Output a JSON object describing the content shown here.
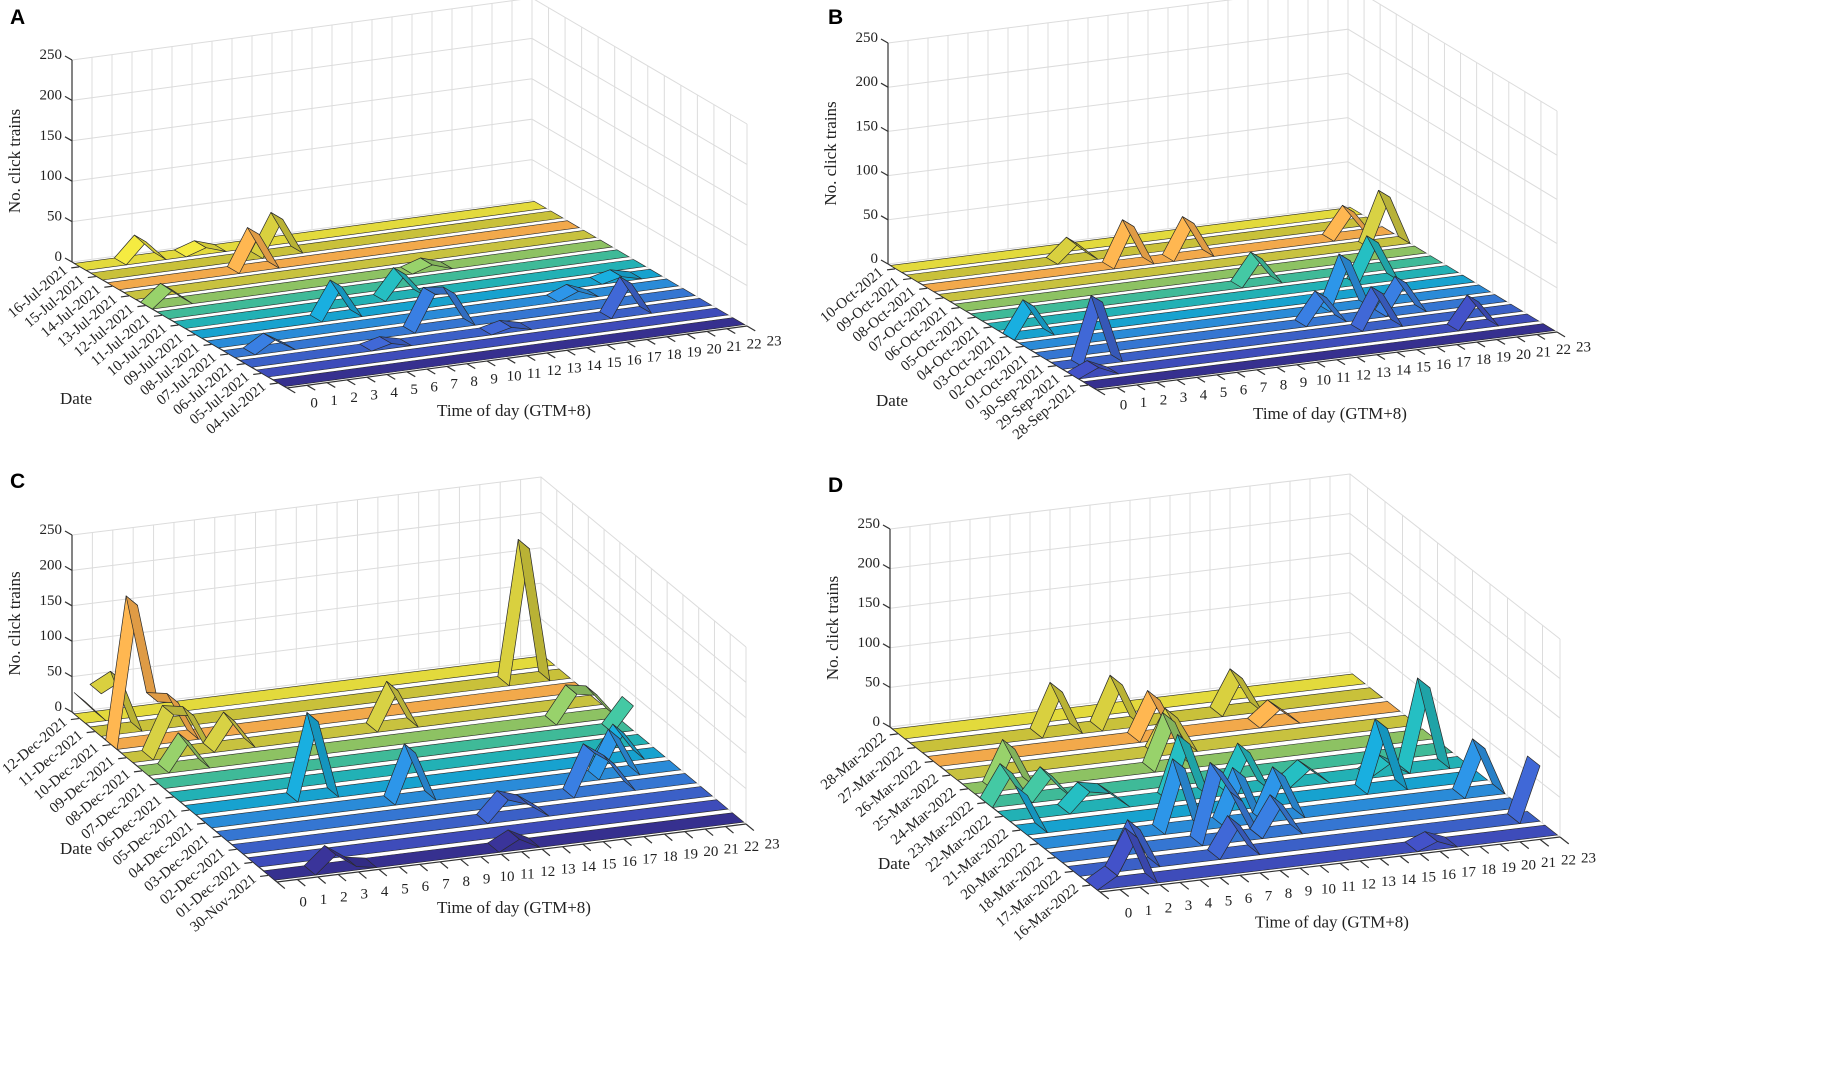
{
  "row_colors": [
    "#e3da3c",
    "#c9c13a",
    "#f2a94b",
    "#c8c23f",
    "#8dc263",
    "#3fba98",
    "#22b1b5",
    "#17a2cf",
    "#2a8bd8",
    "#3576d2",
    "#3b60c7",
    "#3e4cba",
    "#36308f"
  ],
  "chart_data": [
    {
      "type": "3d-ribbon",
      "panel_label": "A",
      "xlabel": "Time of day (GTM+8)",
      "ylabel": "Date",
      "zlabel": "No. click trains",
      "hours": [
        "0",
        "1",
        "2",
        "3",
        "4",
        "5",
        "6",
        "7",
        "8",
        "9",
        "10",
        "11",
        "12",
        "13",
        "14",
        "15",
        "16",
        "17",
        "18",
        "19",
        "20",
        "21",
        "22",
        "23"
      ],
      "zticks": [
        "0",
        "50",
        "100",
        "150",
        "200",
        "250"
      ],
      "zlim": [
        0,
        250
      ],
      "grid": true,
      "dates": [
        "16-Jul-2021",
        "15-Jul-2021",
        "14-Jul-2021",
        "13-Jul-2021",
        "12-Jul-2021",
        "11-Jul-2021",
        "10-Jul-2021",
        "09-Jul-2021",
        "08-Jul-2021",
        "07-Jul-2021",
        "06-Jul-2021",
        "05-Jul-2021",
        "04-Jul-2021"
      ],
      "peaks": [
        [
          "16-Jul-2021",
          3,
          25
        ],
        [
          "16-Jul-2021",
          6,
          8
        ],
        [
          "15-Jul-2021",
          9,
          45
        ],
        [
          "14-Jul-2021",
          7,
          45
        ],
        [
          "12-Jul-2021",
          1,
          20
        ],
        [
          "12-Jul-2021",
          14,
          8
        ],
        [
          "10-Jul-2021",
          11,
          30
        ],
        [
          "09-Jul-2021",
          7,
          40
        ],
        [
          "08-Jul-2021",
          18,
          10
        ],
        [
          "09-Jul-2021",
          21,
          6
        ],
        [
          "07-Jul-2021",
          10,
          45
        ],
        [
          "07-Jul-2021",
          11,
          42
        ],
        [
          "07-Jul-2021",
          2,
          15
        ],
        [
          "06-Jul-2021",
          19,
          40
        ],
        [
          "06-Jul-2021",
          7,
          6
        ],
        [
          "06-Jul-2021",
          13,
          6
        ]
      ]
    },
    {
      "type": "3d-ribbon",
      "panel_label": "B",
      "xlabel": "Time of day (GTM+8)",
      "ylabel": "Date",
      "zlabel": "No. click trains",
      "hours": [
        "0",
        "1",
        "2",
        "3",
        "4",
        "5",
        "6",
        "7",
        "8",
        "9",
        "10",
        "11",
        "12",
        "13",
        "14",
        "15",
        "16",
        "17",
        "18",
        "19",
        "20",
        "21",
        "22",
        "23"
      ],
      "zticks": [
        "0",
        "50",
        "100",
        "150",
        "200",
        "250"
      ],
      "zlim": [
        0,
        250
      ],
      "grid": true,
      "dates": [
        "10-Oct-2021",
        "09-Oct-2021",
        "08-Oct-2021",
        "07-Oct-2021",
        "06-Oct-2021",
        "05-Oct-2021",
        "04-Oct-2021",
        "03-Oct-2021",
        "02-Oct-2021",
        "01-Oct-2021",
        "30-Sep-2021",
        "29-Sep-2021",
        "28-Sep-2021"
      ],
      "peaks": [
        [
          "09-Oct-2021",
          8,
          20
        ],
        [
          "08-Oct-2021",
          10,
          45
        ],
        [
          "08-Oct-2021",
          13,
          40
        ],
        [
          "08-Oct-2021",
          21,
          30
        ],
        [
          "07-Oct-2021",
          22,
          55
        ],
        [
          "05-Oct-2021",
          14,
          30
        ],
        [
          "04-Oct-2021",
          19,
          45
        ],
        [
          "02-Oct-2021",
          16,
          55
        ],
        [
          "01-Oct-2021",
          14,
          30
        ],
        [
          "30-Sep-2021",
          16,
          40
        ],
        [
          "01-Oct-2021",
          18,
          35
        ],
        [
          "29-Sep-2021",
          20,
          30
        ],
        [
          "03-Oct-2021",
          1,
          35
        ],
        [
          "30-Sep-2021",
          2,
          70
        ],
        [
          "29-Sep-2021",
          1,
          10
        ]
      ]
    },
    {
      "type": "3d-ribbon",
      "panel_label": "C",
      "xlabel": "Time of day (GTM+8)",
      "ylabel": "Date",
      "zlabel": "No. click trains",
      "hours": [
        "0",
        "1",
        "2",
        "3",
        "4",
        "5",
        "6",
        "7",
        "8",
        "9",
        "10",
        "11",
        "12",
        "13",
        "14",
        "15",
        "16",
        "17",
        "18",
        "19",
        "20",
        "21",
        "22",
        "23"
      ],
      "zticks": [
        "0",
        "50",
        "100",
        "150",
        "200",
        "250"
      ],
      "zlim": [
        0,
        250
      ],
      "grid": true,
      "dates": [
        "12-Dec-2021",
        "11-Dec-2021",
        "10-Dec-2021",
        "09-Dec-2021",
        "08-Dec-2021",
        "07-Dec-2021",
        "06-Dec-2021",
        "05-Dec-2021",
        "04-Dec-2021",
        "03-Dec-2021",
        "02-Dec-2021",
        "01-Dec-2021",
        "30-Nov-2021"
      ],
      "peaks": [
        [
          "12-Dec-2021",
          0,
          30
        ],
        [
          "11-Dec-2021",
          0,
          60
        ],
        [
          "11-Dec-2021",
          1,
          75
        ],
        [
          "10-Dec-2021",
          1,
          200
        ],
        [
          "10-Dec-2021",
          2,
          60
        ],
        [
          "10-Dec-2021",
          3,
          55
        ],
        [
          "09-Dec-2021",
          2,
          60
        ],
        [
          "09-Dec-2021",
          3,
          55
        ],
        [
          "08-Dec-2021",
          2,
          40
        ],
        [
          "09-Dec-2021",
          5,
          40
        ],
        [
          "05-Dec-2021",
          6,
          110
        ],
        [
          "09-Dec-2021",
          13,
          55
        ],
        [
          "11-Dec-2021",
          21,
          190
        ],
        [
          "08-Dec-2021",
          21,
          40
        ],
        [
          "08-Dec-2021",
          22,
          35
        ],
        [
          "07-Dec-2021",
          23,
          35
        ],
        [
          "04-Dec-2021",
          10,
          70
        ],
        [
          "03-Dec-2021",
          18,
          60
        ],
        [
          "03-Dec-2021",
          19,
          40
        ],
        [
          "04-Dec-2021",
          20,
          55
        ],
        [
          "05-Dec-2021",
          21,
          40
        ],
        [
          "02-Dec-2021",
          13,
          30
        ],
        [
          "02-Dec-2021",
          14,
          20
        ],
        [
          "30-Nov-2021",
          3,
          25
        ],
        [
          "30-Nov-2021",
          4,
          5
        ],
        [
          "30-Nov-2021",
          12,
          15
        ]
      ]
    },
    {
      "type": "3d-ribbon",
      "panel_label": "D",
      "xlabel": "Time of day (GTM+8)",
      "ylabel": "Date",
      "zlabel": "No. click trains",
      "hours": [
        "0",
        "1",
        "2",
        "3",
        "4",
        "5",
        "6",
        "7",
        "8",
        "9",
        "10",
        "11",
        "12",
        "13",
        "14",
        "15",
        "16",
        "17",
        "18",
        "19",
        "20",
        "21",
        "22",
        "23"
      ],
      "zticks": [
        "0",
        "50",
        "100",
        "150",
        "200",
        "250"
      ],
      "zlim": [
        0,
        250
      ],
      "grid": true,
      "dates": [
        "28-Mar-2022",
        "27-Mar-2022",
        "26-Mar-2022",
        "25-Mar-2022",
        "24-Mar-2022",
        "23-Mar-2022",
        "22-Mar-2022",
        "21-Mar-2022",
        "20-Mar-2022",
        "18-Mar-2022",
        "17-Mar-2022",
        "16-Mar-2022"
      ],
      "peaks": [
        [
          "27-Mar-2022",
          7,
          55
        ],
        [
          "27-Mar-2022",
          10,
          55
        ],
        [
          "26-Mar-2022",
          11,
          50
        ],
        [
          "24-Mar-2022",
          10,
          60
        ],
        [
          "25-Mar-2022",
          11,
          45
        ],
        [
          "27-Mar-2022",
          16,
          45
        ],
        [
          "26-Mar-2022",
          17,
          20
        ],
        [
          "22-Mar-2022",
          12,
          50
        ],
        [
          "22-Mar-2022",
          15,
          20
        ],
        [
          "22-Mar-2022",
          21,
          105
        ],
        [
          "21-Mar-2022",
          18,
          80
        ],
        [
          "20-Mar-2022",
          22,
          60
        ],
        [
          "22-Mar-2022",
          19,
          15
        ],
        [
          "17-Mar-2022",
          23,
          70
        ],
        [
          "16-Mar-2022",
          17,
          10
        ],
        [
          "23-Mar-2022",
          1,
          40
        ],
        [
          "24-Mar-2022",
          2,
          50
        ],
        [
          "23-Mar-2022",
          3,
          30
        ],
        [
          "22-Mar-2022",
          4,
          25
        ],
        [
          "22-Mar-2022",
          5,
          20
        ],
        [
          "21-Mar-2022",
          0,
          50
        ],
        [
          "16-Mar-2022",
          1,
          15
        ],
        [
          "18-Mar-2022",
          8,
          90
        ],
        [
          "20-Mar-2022",
          7,
          80
        ],
        [
          "18-Mar-2022",
          9,
          50
        ],
        [
          "17-Mar-2022",
          8,
          40
        ],
        [
          "17-Mar-2022",
          3,
          50
        ],
        [
          "16-Mar-2022",
          2,
          60
        ],
        [
          "20-Mar-2022",
          10,
          60
        ],
        [
          "18-Mar-2022",
          11,
          40
        ],
        [
          "20-Mar-2022",
          12,
          55
        ],
        [
          "22-Mar-2022",
          9,
          70
        ]
      ]
    }
  ]
}
